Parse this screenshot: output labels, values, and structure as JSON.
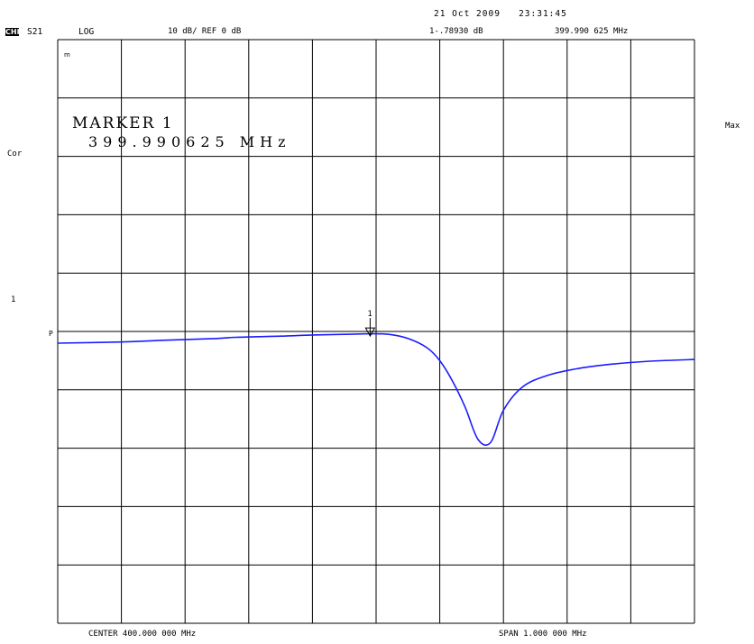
{
  "header": {
    "channel_box": "CHI",
    "param": "S21",
    "format": "LOG",
    "scale": "10 dB/ REF 0 dB",
    "datetime": "21 Oct 2009   23:31:45",
    "marker_readout_value": "1-.78930 dB",
    "marker_readout_freq": "399.990 625 MHz"
  },
  "side_labels": {
    "cor": "Cor",
    "one": "1",
    "ref_p": "P",
    "max": "Max",
    "small_mark": "m"
  },
  "marker": {
    "title": "MARKER 1",
    "frequency": "399.990625 MHz",
    "number_label": "1"
  },
  "footer": {
    "center": "CENTER 400.000 000 MHz",
    "span": "SPAN 1.000 000 MHz"
  },
  "chart_data": {
    "type": "line",
    "ylabel": "",
    "xlabel": "",
    "xlim_mhz": [
      399.5,
      400.5
    ],
    "ylim_db": [
      -50,
      50
    ],
    "grid": true,
    "grid_divisions": {
      "x": 10,
      "y": 10
    },
    "series": [
      {
        "color": "#1c1cff",
        "x_mhz": [
          399.5,
          399.6,
          399.67,
          399.75,
          399.78,
          399.85,
          399.9,
          399.95,
          399.99,
          400.02,
          400.05,
          400.08,
          400.1,
          400.12,
          400.14,
          400.16,
          400.18,
          400.2,
          400.23,
          400.27,
          400.32,
          400.37,
          400.43,
          400.5
        ],
        "y_db": [
          -2.0,
          -1.8,
          -1.5,
          -1.2,
          -1.0,
          -0.8,
          -0.6,
          -0.5,
          -0.4,
          -0.5,
          -1.2,
          -2.8,
          -5.0,
          -8.5,
          -13.0,
          -18.5,
          -19.0,
          -13.5,
          -9.5,
          -7.5,
          -6.3,
          -5.6,
          -5.1,
          -4.8
        ]
      }
    ],
    "marker": {
      "x_mhz": 399.990625,
      "y_db": -0.7893
    }
  }
}
